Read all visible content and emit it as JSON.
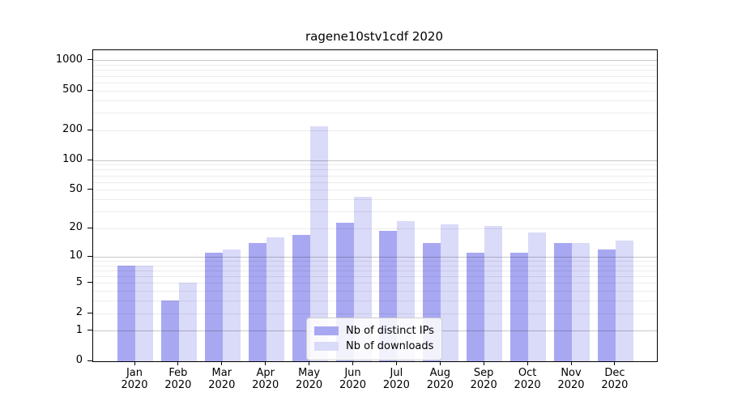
{
  "title": "ragene10stv1cdf 2020",
  "chart_data": {
    "type": "bar",
    "title": "ragene10stv1cdf 2020",
    "categories": [
      "Jan 2020",
      "Feb 2020",
      "Mar 2020",
      "Apr 2020",
      "May 2020",
      "Jun 2020",
      "Jul 2020",
      "Aug 2020",
      "Sep 2020",
      "Oct 2020",
      "Nov 2020",
      "Dec 2020"
    ],
    "series": [
      {
        "name": "Nb of distinct IPs",
        "color": "#a8a8f2",
        "values": [
          8,
          3,
          11,
          14,
          17,
          23,
          19,
          14,
          11,
          11,
          14,
          12
        ]
      },
      {
        "name": "Nb of downloads",
        "color": "#dadaf9",
        "values": [
          8,
          5,
          12,
          16,
          218,
          42,
          24,
          22,
          21,
          18,
          14,
          15
        ]
      }
    ],
    "xlabel": "",
    "ylabel": "",
    "yscale": "log1p",
    "y_ticks": [
      0,
      1,
      2,
      5,
      10,
      20,
      50,
      100,
      200,
      500,
      1000
    ],
    "ylim": [
      0,
      1200
    ],
    "grid": true,
    "legend_position": "lower center inside"
  },
  "colors": {
    "background": "#ffffff",
    "spine": "#000000",
    "major_grid": "#c6c6c6",
    "minor_grid": "#ececec",
    "legend_border": "#cccccc",
    "text": "#000000"
  }
}
